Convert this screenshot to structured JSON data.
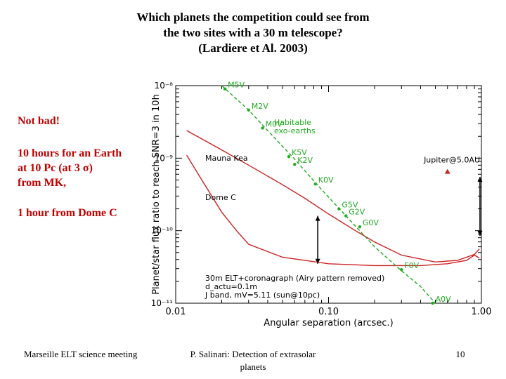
{
  "slide": {
    "title_lines": [
      "Which planets the competition could see from",
      "the two sites with a 30 m telescope?",
      "(Lardiere et Al. 2003)"
    ],
    "notes": {
      "line1": "Not bad!",
      "line2": "10 hours for an Earth",
      "line3": "at 10 Pc (at  3 σ)",
      "line4": "from MK,",
      "line5": "1 hour from Dome C"
    },
    "footer": {
      "left": "Marseille ELT science meeting",
      "center_line1": "P. Salinari: Detection of extrasolar",
      "center_line2": "planets",
      "page": "10"
    }
  },
  "colors": {
    "red": "#cc2222",
    "green": "#22aa22",
    "note": "#c00000"
  },
  "chart_data": {
    "type": "line",
    "xlabel": "Angular separation  (arcsec.)",
    "ylabel": "Planet/star flux ratio to reach SNR=3 in 10h",
    "xscale": "log",
    "yscale": "log",
    "xlim": [
      0.01,
      1.0
    ],
    "ylim": [
      1e-11,
      1e-08
    ],
    "x_ticks": [
      {
        "value": 0.01,
        "label": "0.01"
      },
      {
        "value": 0.1,
        "label": "0.10"
      },
      {
        "value": 1.0,
        "label": "1.00"
      }
    ],
    "y_ticks": [
      {
        "value": 1e-08,
        "label": "10⁻⁸"
      },
      {
        "value": 1e-09,
        "label": "10⁻⁹"
      },
      {
        "value": 1e-10,
        "label": "10⁻¹⁰"
      },
      {
        "value": 1e-11,
        "label": "10⁻¹¹"
      }
    ],
    "series": [
      {
        "name": "Mauna Kea",
        "color": "#cc2222",
        "points": [
          [
            0.0118,
            2.4e-09
          ],
          [
            0.02,
            1.3e-09
          ],
          [
            0.03,
            8e-10
          ],
          [
            0.05,
            4.3e-10
          ],
          [
            0.07,
            2.8e-10
          ],
          [
            0.1,
            1.7e-10
          ],
          [
            0.15,
            1e-10
          ],
          [
            0.2,
            7e-11
          ],
          [
            0.3,
            4.6e-11
          ],
          [
            0.5,
            3.7e-11
          ],
          [
            0.7,
            3.9e-11
          ],
          [
            0.9,
            4.7e-11
          ],
          [
            0.97,
            5.6e-11
          ]
        ]
      },
      {
        "name": "Dome C",
        "color": "#cc2222",
        "points": [
          [
            0.0118,
            1.1e-09
          ],
          [
            0.015,
            4.8e-10
          ],
          [
            0.02,
            1.8e-10
          ],
          [
            0.025,
            1e-10
          ],
          [
            0.03,
            6.5e-11
          ],
          [
            0.05,
            4.3e-11
          ],
          [
            0.1,
            3.5e-11
          ],
          [
            0.2,
            3.3e-11
          ],
          [
            0.4,
            3.3e-11
          ],
          [
            0.6,
            3.5e-11
          ],
          [
            0.8,
            3.9e-11
          ],
          [
            0.9,
            4.6e-11
          ],
          [
            0.97,
            4.2e-11
          ]
        ]
      },
      {
        "name": "Habitable exo-earths",
        "color": "#22aa22",
        "points": [
          [
            0.02,
            1e-08
          ],
          [
            0.03,
            4.6e-09
          ],
          [
            0.04,
            2.4e-09
          ],
          [
            0.06,
            9.7e-10
          ],
          [
            0.09,
            3.7e-10
          ],
          [
            0.13,
            1.6e-10
          ],
          [
            0.2,
            6e-11
          ],
          [
            0.3,
            2.8e-11
          ],
          [
            0.4,
            1.7e-11
          ],
          [
            0.5,
            1e-11
          ]
        ]
      }
    ],
    "stars": [
      {
        "label": "M5V",
        "x": 0.021,
        "y": 9e-09
      },
      {
        "label": "M2V",
        "x": 0.03,
        "y": 4.6e-09
      },
      {
        "label": "M0V",
        "x": 0.037,
        "y": 2.6e-09
      },
      {
        "label": "K5V",
        "x": 0.055,
        "y": 1.05e-09
      },
      {
        "label": "K2V",
        "x": 0.06,
        "y": 8.2e-10
      },
      {
        "label": "K0V",
        "x": 0.082,
        "y": 4.4e-10
      },
      {
        "label": "G5V",
        "x": 0.117,
        "y": 2e-10
      },
      {
        "label": "G2V",
        "x": 0.13,
        "y": 1.6e-10
      },
      {
        "label": "G0V",
        "x": 0.16,
        "y": 1.13e-10
      },
      {
        "label": "F0V",
        "x": 0.3,
        "y": 2.9e-11
      },
      {
        "label": "A0V",
        "x": 0.48,
        "y": 1e-11
      }
    ],
    "annotations": [
      {
        "id": "habitable",
        "text_line1": "Habitable",
        "text_line2": "exo-earths"
      },
      {
        "id": "mauna",
        "text": "Mauna Kea"
      },
      {
        "id": "domec",
        "text": "Dome C"
      },
      {
        "id": "jupiter",
        "text": "Jupiter@5.0AU",
        "x": 0.6,
        "y": 6.5e-10
      },
      {
        "id": "caption1",
        "text": "30m ELT+coronagraph (Airy pattern removed)"
      },
      {
        "id": "caption2",
        "text": "d_actu=0.1m"
      },
      {
        "id": "caption3",
        "text": "J band, mV=5.11 (sun@10pc)"
      }
    ]
  }
}
